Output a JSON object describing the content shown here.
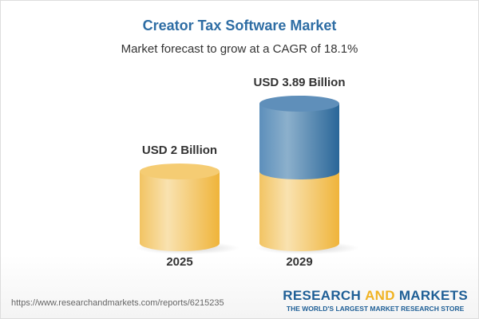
{
  "chart_data": {
    "type": "bar",
    "title": "Creator Tax Software Market",
    "subtitle": "Market forecast to grow at a CAGR of 18.1%",
    "categories": [
      "2025",
      "2029"
    ],
    "values": [
      2,
      3.89
    ],
    "data_labels": [
      "USD 2 Billion",
      "USD 3.89 Billion"
    ],
    "unit": "USD Billion",
    "style": "3d-cylinder",
    "colors": {
      "base": "#f3c35e",
      "growth": "#3f78a8"
    }
  },
  "footer": {
    "url": "https://www.researchandmarkets.com/reports/6215235"
  },
  "logo": {
    "part1": "RESEARCH ",
    "part2": "AND",
    "part3": " MARKETS",
    "tagline": "THE WORLD'S LARGEST MARKET RESEARCH STORE"
  }
}
